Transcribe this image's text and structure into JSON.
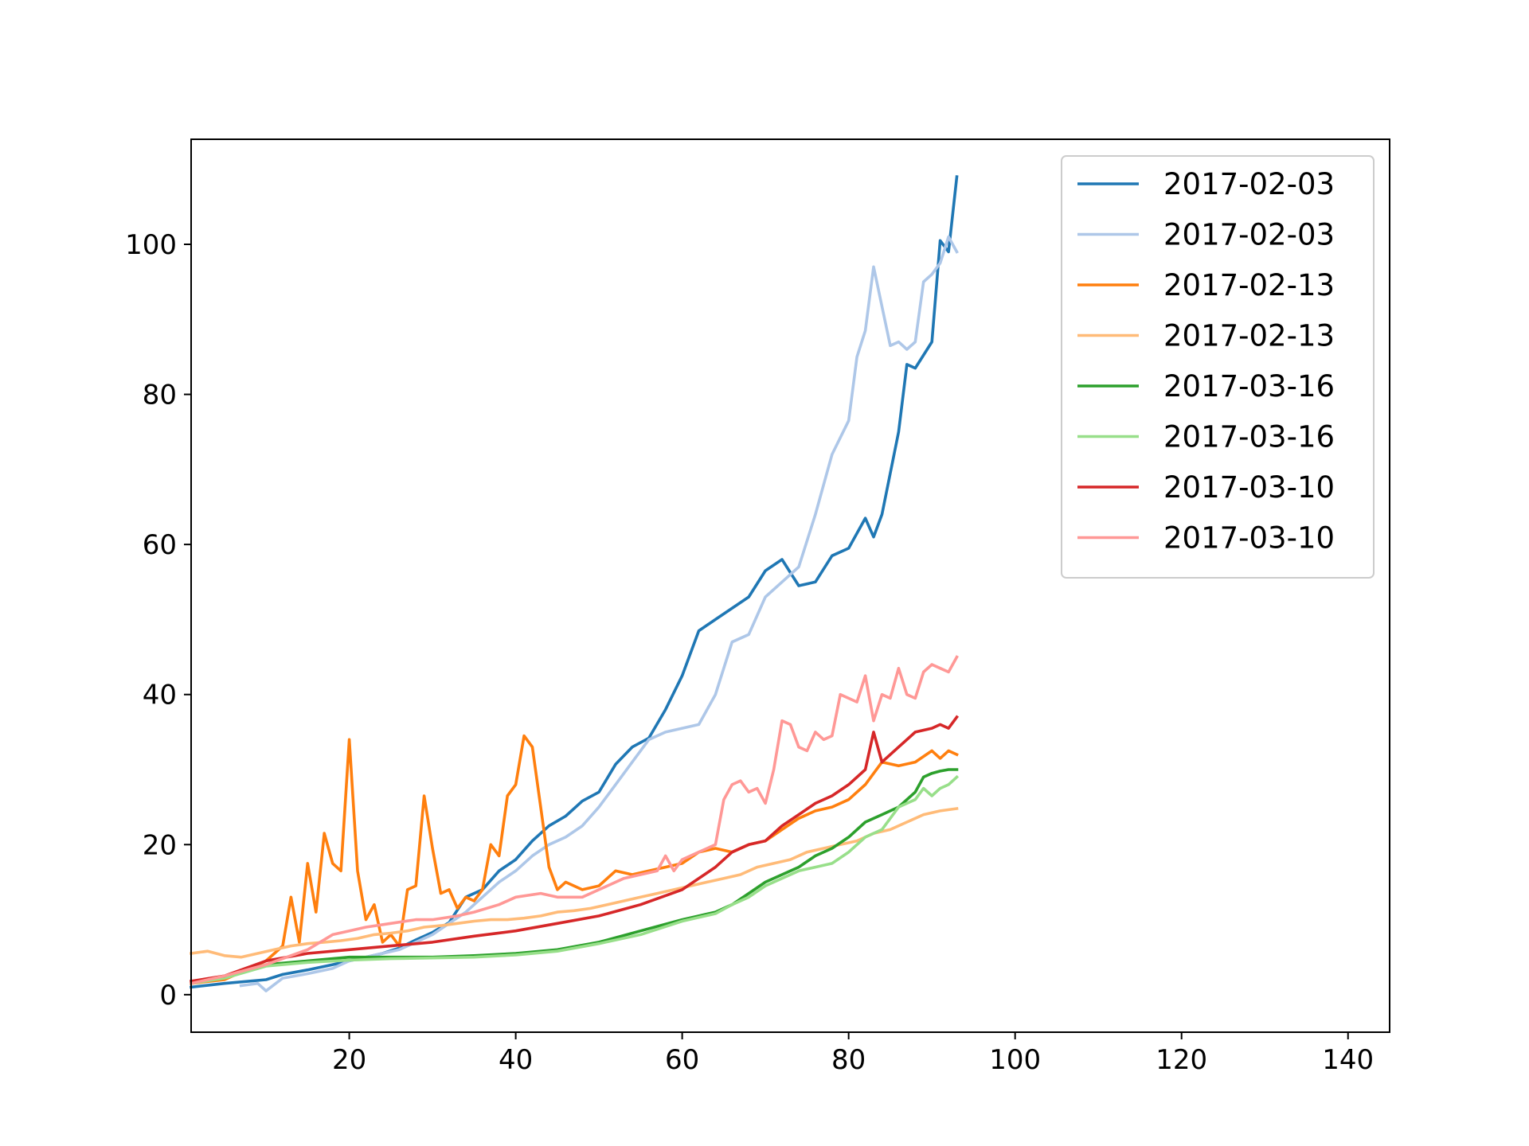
{
  "chart_data": {
    "type": "line",
    "title": "",
    "xlabel": "",
    "ylabel": "",
    "xlim": [
      1,
      145
    ],
    "ylim": [
      -5,
      114
    ],
    "xticks": [
      20,
      40,
      60,
      80,
      100,
      120,
      140
    ],
    "yticks": [
      0,
      20,
      40,
      60,
      80,
      100
    ],
    "grid": false,
    "legend_position": "top-right",
    "series": [
      {
        "name": "2017-02-03",
        "color": "#1f77b4",
        "x": [
          1,
          5,
          10,
          12,
          15,
          18,
          20,
          22,
          24,
          26,
          28,
          30,
          32,
          34,
          36,
          38,
          40,
          42,
          44,
          46,
          48,
          50,
          52,
          54,
          56,
          58,
          60,
          62,
          64,
          66,
          68,
          70,
          72,
          74,
          76,
          78,
          80,
          82,
          83,
          84,
          86,
          87,
          88,
          90,
          91,
          92,
          93
        ],
        "y": [
          1,
          1.5,
          2,
          2.7,
          3.3,
          4,
          4.5,
          5,
          5.5,
          6.2,
          7.3,
          8.3,
          9.6,
          13,
          14,
          16.5,
          18,
          20.5,
          22.5,
          23.8,
          25.8,
          27,
          30.7,
          33,
          34.2,
          38,
          42.5,
          48.5,
          50,
          51.5,
          53,
          56.5,
          58,
          54.5,
          55,
          58.5,
          59.5,
          63.5,
          61,
          64,
          75,
          84,
          83.5,
          87,
          100.5,
          99,
          109
        ]
      },
      {
        "name": "2017-02-03",
        "color": "#aec7e8",
        "x": [
          7,
          9,
          10,
          12,
          15,
          18,
          20,
          22,
          24,
          26,
          28,
          30,
          32,
          34,
          36,
          38,
          40,
          42,
          44,
          46,
          48,
          50,
          52,
          54,
          56,
          58,
          60,
          62,
          64,
          66,
          68,
          70,
          72,
          74,
          76,
          78,
          80,
          81,
          82,
          83,
          85,
          86,
          87,
          88,
          89,
          90,
          91,
          92,
          93
        ],
        "y": [
          1.2,
          1.5,
          0.5,
          2.2,
          2.8,
          3.5,
          4.5,
          5,
          5.5,
          6,
          7,
          8,
          9.5,
          11,
          13,
          15,
          16.5,
          18.5,
          20,
          21,
          22.5,
          25,
          28,
          31,
          34,
          35,
          35.5,
          36,
          40,
          47,
          48,
          53,
          55,
          57,
          64,
          72,
          76.5,
          85,
          88.5,
          97,
          86.5,
          87,
          86,
          87,
          95,
          96,
          97.5,
          101,
          99
        ]
      },
      {
        "name": "2017-02-13",
        "color": "#ff7f0e",
        "x": [
          1,
          5,
          10,
          12,
          13,
          14,
          15,
          16,
          17,
          18,
          19,
          20,
          21,
          22,
          23,
          24,
          25,
          26,
          27,
          28,
          29,
          30,
          31,
          32,
          33,
          34,
          35,
          36,
          37,
          38,
          39,
          40,
          41,
          42,
          44,
          45,
          46,
          48,
          50,
          52,
          54,
          56,
          58,
          60,
          62,
          64,
          66,
          68,
          70,
          72,
          74,
          76,
          78,
          80,
          82,
          84,
          86,
          88,
          90,
          91,
          92,
          93
        ],
        "y": [
          1.5,
          2,
          4.5,
          6.5,
          13,
          7,
          17.5,
          11,
          21.5,
          17.5,
          16.5,
          34,
          16.5,
          10,
          12,
          7,
          8,
          6.5,
          14,
          14.5,
          26.5,
          19.5,
          13.5,
          14,
          11.5,
          13,
          12.5,
          14,
          20,
          18.5,
          26.5,
          28,
          34.5,
          33,
          17,
          14,
          15,
          14,
          14.5,
          16.5,
          16,
          16.5,
          17,
          17.5,
          19,
          19.5,
          19,
          20,
          20.5,
          22,
          23.5,
          24.5,
          25,
          26,
          28,
          31,
          30.5,
          31,
          32.5,
          31.5,
          32.5,
          32
        ]
      },
      {
        "name": "2017-02-13",
        "color": "#ffbb78",
        "x": [
          1,
          3,
          5,
          7,
          9,
          11,
          13,
          15,
          17,
          19,
          21,
          23,
          25,
          27,
          29,
          31,
          33,
          35,
          37,
          39,
          41,
          43,
          45,
          47,
          49,
          51,
          53,
          55,
          57,
          59,
          61,
          63,
          65,
          67,
          69,
          71,
          73,
          75,
          77,
          79,
          81,
          83,
          85,
          87,
          89,
          91,
          93
        ],
        "y": [
          5.5,
          5.8,
          5.2,
          5,
          5.5,
          6,
          6.5,
          6.8,
          7,
          7.2,
          7.5,
          8,
          8.2,
          8.5,
          9,
          9.2,
          9.5,
          9.8,
          10,
          10,
          10.2,
          10.5,
          11,
          11.2,
          11.5,
          12,
          12.5,
          13,
          13.5,
          14,
          14.5,
          15,
          15.5,
          16,
          17,
          17.5,
          18,
          19,
          19.5,
          20,
          20.5,
          21.5,
          22,
          23,
          24,
          24.5,
          24.8
        ]
      },
      {
        "name": "2017-03-16",
        "color": "#2ca02c",
        "x": [
          1,
          5,
          10,
          15,
          20,
          25,
          30,
          35,
          40,
          45,
          50,
          55,
          60,
          62,
          64,
          66,
          68,
          70,
          72,
          74,
          76,
          78,
          80,
          82,
          84,
          86,
          88,
          89,
          90,
          91,
          92,
          93
        ],
        "y": [
          1.5,
          2.5,
          4,
          4.5,
          5,
          5,
          5,
          5.2,
          5.5,
          6,
          7,
          8.5,
          10,
          10.5,
          11,
          12,
          13.5,
          15,
          16,
          17,
          18.5,
          19.5,
          21,
          23,
          24,
          25,
          27,
          29,
          29.5,
          29.8,
          30,
          30
        ]
      },
      {
        "name": "2017-03-16",
        "color": "#98df8a",
        "x": [
          1,
          5,
          10,
          15,
          20,
          25,
          30,
          35,
          40,
          45,
          50,
          55,
          60,
          62,
          64,
          66,
          68,
          70,
          72,
          74,
          76,
          78,
          80,
          82,
          84,
          86,
          88,
          89,
          90,
          91,
          92,
          93
        ],
        "y": [
          1.5,
          2.2,
          3.8,
          4.3,
          4.6,
          4.8,
          4.9,
          5,
          5.3,
          5.8,
          6.8,
          8,
          9.8,
          10.3,
          10.8,
          12,
          13,
          14.5,
          15.5,
          16.5,
          17,
          17.5,
          19,
          21,
          22,
          25,
          26,
          27.5,
          26.5,
          27.5,
          28,
          29
        ]
      },
      {
        "name": "2017-03-10",
        "color": "#d62728",
        "x": [
          1,
          5,
          10,
          15,
          20,
          25,
          30,
          35,
          40,
          45,
          50,
          55,
          60,
          62,
          64,
          66,
          68,
          70,
          72,
          74,
          76,
          78,
          80,
          82,
          83,
          84,
          86,
          88,
          90,
          91,
          92,
          93
        ],
        "y": [
          1.8,
          2.5,
          4.5,
          5.5,
          6,
          6.5,
          7,
          7.8,
          8.5,
          9.5,
          10.5,
          12,
          14,
          15.5,
          17,
          19,
          20,
          20.5,
          22.5,
          24,
          25.5,
          26.5,
          28,
          30,
          35,
          31,
          33,
          35,
          35.5,
          36,
          35.5,
          37
        ]
      },
      {
        "name": "2017-03-10",
        "color": "#ff9896",
        "x": [
          1,
          5,
          10,
          15,
          18,
          20,
          22,
          25,
          28,
          30,
          33,
          35,
          38,
          40,
          43,
          45,
          48,
          50,
          53,
          55,
          57,
          58,
          59,
          60,
          62,
          64,
          65,
          66,
          67,
          68,
          69,
          70,
          71,
          72,
          73,
          74,
          75,
          76,
          77,
          78,
          79,
          80,
          81,
          82,
          83,
          84,
          85,
          86,
          87,
          88,
          89,
          90,
          91,
          92,
          93
        ],
        "y": [
          1.5,
          2.5,
          4,
          6,
          8,
          8.5,
          9,
          9.5,
          10,
          10,
          10.5,
          11,
          12,
          13,
          13.5,
          13,
          13,
          14,
          15.5,
          16,
          16.5,
          18.5,
          16.5,
          18,
          19,
          20,
          26,
          28,
          28.5,
          27,
          27.5,
          25.5,
          30,
          36.5,
          36,
          33,
          32.5,
          35,
          34,
          34.5,
          40,
          39.5,
          39,
          42.5,
          36.5,
          40,
          39.5,
          43.5,
          40,
          39.5,
          43,
          44,
          43.5,
          43,
          45
        ]
      }
    ]
  }
}
